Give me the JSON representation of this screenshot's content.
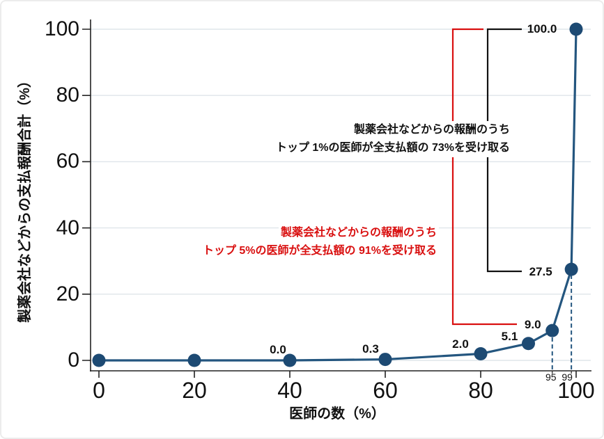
{
  "chart_data": {
    "type": "line",
    "title": "",
    "xlabel": "医師の数（%）",
    "ylabel": "製薬会社などからの支払報酬合計（%）",
    "xlim": [
      0,
      100
    ],
    "ylim": [
      0,
      100
    ],
    "x_ticks": [
      0,
      20,
      40,
      60,
      80,
      100
    ],
    "y_ticks": [
      0,
      20,
      40,
      60,
      80,
      100
    ],
    "x_minor_tick_labels": [
      "95",
      "99"
    ],
    "grid": "horizontal",
    "series": [
      {
        "points": [
          {
            "x": 0,
            "y": 0,
            "label": ""
          },
          {
            "x": 20,
            "y": 0,
            "label": ""
          },
          {
            "x": 40,
            "y": 0.0,
            "label": "0.0"
          },
          {
            "x": 60,
            "y": 0.3,
            "label": "0.3"
          },
          {
            "x": 80,
            "y": 2.0,
            "label": "2.0"
          },
          {
            "x": 90,
            "y": 5.1,
            "label": "5.1"
          },
          {
            "x": 95,
            "y": 9.0,
            "label": "9.0"
          },
          {
            "x": 99,
            "y": 27.5,
            "label": "27.5"
          },
          {
            "x": 100,
            "y": 100.0,
            "label": "100.0"
          }
        ]
      }
    ],
    "reference_lines": [
      {
        "x": 95,
        "to_y": 9.0
      },
      {
        "x": 99,
        "to_y": 27.5
      }
    ],
    "annotations": [
      {
        "id": "top1",
        "line1": "製薬会社などからの報酬のうち",
        "line2": "トップ 1%の医師が全支払額の 73%を受け取る",
        "color": "#111111",
        "bracket_top_value": 100.0,
        "bracket_bottom_value": 27.5
      },
      {
        "id": "top5",
        "line1": "製薬会社などからの報酬のうち",
        "line2": "トップ 5%の医師が全支払額の 91%を受け取る",
        "color": "#d90f0f",
        "bracket_top_value": 100.0,
        "bracket_bottom_value": 9.0
      }
    ],
    "colors": {
      "line": "#24567f",
      "marker": "#1d4a73",
      "grid": "#dfe5ea",
      "axis": "#222222",
      "annotation_black": "#111111",
      "annotation_red": "#d90f0f"
    }
  }
}
